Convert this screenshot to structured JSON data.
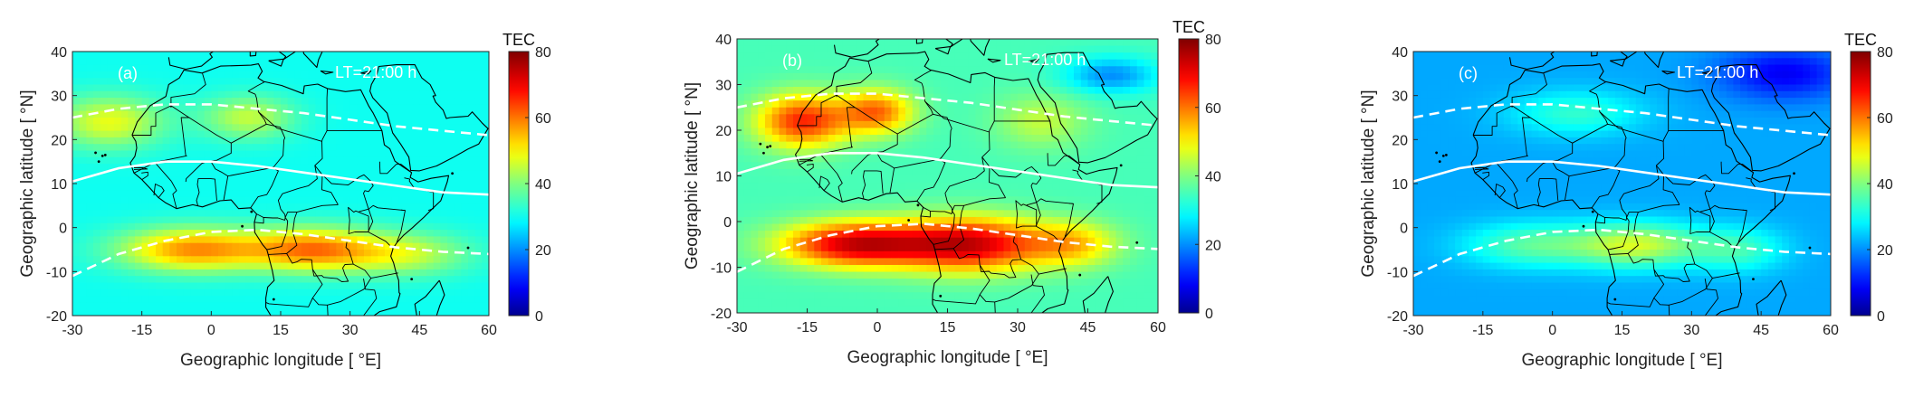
{
  "figure": {
    "panels": [
      {
        "label": "(a)",
        "annotation": "LT=21:00 h"
      },
      {
        "label": "(b)",
        "annotation": "LT=21:00 h"
      },
      {
        "label": "(c)",
        "annotation": "LT=21:00 h"
      }
    ]
  },
  "chart_data": [
    {
      "type": "heatmap",
      "panel_label": "(a)",
      "annotation": "LT=21:00 h",
      "xlabel": "Geographic longitude [ °E]",
      "ylabel": "Geographic latitude [ °N]",
      "xlim": [
        -30,
        60
      ],
      "ylim": [
        -20,
        40
      ],
      "xticks": [
        -30,
        -15,
        0,
        15,
        30,
        45,
        60
      ],
      "yticks": [
        -20,
        -10,
        0,
        10,
        20,
        30,
        40
      ],
      "colorbar": {
        "title": "TEC",
        "range": [
          0,
          80
        ],
        "ticks": [
          0,
          20,
          40,
          60,
          80
        ]
      },
      "background_tec": 30,
      "hotspots": [
        {
          "lon": -4,
          "lat": -5,
          "tec": 58,
          "rlon": 16,
          "rlat": 5
        },
        {
          "lon": 22,
          "lat": -5,
          "tec": 58,
          "rlon": 14,
          "rlat": 5
        },
        {
          "lon": -22,
          "lat": 24,
          "tec": 48,
          "rlon": 12,
          "rlat": 6
        },
        {
          "lon": 8,
          "lat": 25,
          "tec": 45,
          "rlon": 10,
          "rlat": 5
        },
        {
          "lon": 42,
          "lat": -6,
          "tec": 45,
          "rlon": 14,
          "rlat": 5
        }
      ],
      "magnetic_equator": {
        "lon": [
          -30,
          -20,
          -10,
          0,
          10,
          20,
          30,
          40,
          50,
          60
        ],
        "lat": [
          10.5,
          13.5,
          15,
          15,
          14,
          12.5,
          11,
          9.5,
          8,
          7.5
        ]
      },
      "crest_north": {
        "lon": [
          -30,
          -20,
          -10,
          0,
          10,
          20,
          30,
          40,
          50,
          60
        ],
        "lat": [
          25,
          27,
          28,
          28,
          27,
          26,
          24.5,
          23,
          22,
          21
        ]
      },
      "crest_south": {
        "lon": [
          -30,
          -20,
          -10,
          0,
          10,
          20,
          30,
          40,
          50,
          60
        ],
        "lat": [
          -11,
          -6,
          -3,
          -1,
          -0.5,
          -1.5,
          -3,
          -4.5,
          -5.5,
          -6
        ]
      }
    },
    {
      "type": "heatmap",
      "panel_label": "(b)",
      "annotation": "LT=21:00 h",
      "xlabel": "Geographic longitude [ °E]",
      "ylabel": "Geographic latitude [ °N]",
      "xlim": [
        -30,
        60
      ],
      "ylim": [
        -20,
        40
      ],
      "xticks": [
        -30,
        -15,
        0,
        15,
        30,
        45,
        60
      ],
      "yticks": [
        -20,
        -10,
        0,
        10,
        20,
        30,
        40
      ],
      "colorbar": {
        "title": "TEC",
        "range": [
          0,
          80
        ],
        "ticks": [
          0,
          20,
          40,
          60,
          80
        ]
      },
      "background_tec": 35,
      "hotspots": [
        {
          "lon": -5,
          "lat": -5,
          "tec": 72,
          "rlon": 16,
          "rlat": 5
        },
        {
          "lon": 20,
          "lat": -5,
          "tec": 72,
          "rlon": 16,
          "rlat": 6
        },
        {
          "lon": -16,
          "lat": 22,
          "tec": 66,
          "rlon": 10,
          "rlat": 6
        },
        {
          "lon": 0,
          "lat": 24,
          "tec": 60,
          "rlon": 8,
          "rlat": 5
        },
        {
          "lon": 42,
          "lat": -5,
          "tec": 52,
          "rlon": 10,
          "rlat": 5
        },
        {
          "lon": 35,
          "lat": 22,
          "tec": 45,
          "rlon": 10,
          "rlat": 6
        },
        {
          "lon": 50,
          "lat": 32,
          "tec": 20,
          "rlon": 10,
          "rlat": 4
        }
      ],
      "magnetic_equator": {
        "lon": [
          -30,
          -20,
          -10,
          0,
          10,
          20,
          30,
          40,
          50,
          60
        ],
        "lat": [
          10.5,
          13.5,
          15,
          15,
          14,
          12.5,
          11,
          9.5,
          8,
          7.5
        ]
      },
      "crest_north": {
        "lon": [
          -30,
          -20,
          -10,
          0,
          10,
          20,
          30,
          40,
          50,
          60
        ],
        "lat": [
          25,
          27,
          28,
          28,
          27,
          26,
          24.5,
          23,
          22,
          21
        ]
      },
      "crest_south": {
        "lon": [
          -30,
          -20,
          -10,
          0,
          10,
          20,
          30,
          40,
          50,
          60
        ],
        "lat": [
          -11,
          -6,
          -3,
          -1,
          -0.5,
          -1.5,
          -3,
          -4.5,
          -5.5,
          -6
        ]
      }
    },
    {
      "type": "heatmap",
      "panel_label": "(c)",
      "annotation": "LT=21:00 h",
      "xlabel": "Geographic longitude [ °E]",
      "ylabel": "Geographic latitude [ °N]",
      "xlim": [
        -30,
        60
      ],
      "ylim": [
        -20,
        40
      ],
      "xticks": [
        -30,
        -15,
        0,
        15,
        30,
        45,
        60
      ],
      "yticks": [
        -20,
        -10,
        0,
        10,
        20,
        30,
        40
      ],
      "colorbar": {
        "title": "TEC",
        "range": [
          0,
          80
        ],
        "ticks": [
          0,
          20,
          40,
          60,
          80
        ]
      },
      "background_tec": 22,
      "hotspots": [
        {
          "lon": 18,
          "lat": -4,
          "tec": 46,
          "rlon": 14,
          "rlat": 5
        },
        {
          "lon": -5,
          "lat": -4,
          "tec": 36,
          "rlon": 14,
          "rlat": 5
        },
        {
          "lon": 5,
          "lat": 26,
          "tec": 33,
          "rlon": 14,
          "rlat": 5
        },
        {
          "lon": 40,
          "lat": -5,
          "tec": 34,
          "rlon": 10,
          "rlat": 5
        },
        {
          "lon": 50,
          "lat": 35,
          "tec": 8,
          "rlon": 14,
          "rlat": 6
        }
      ],
      "magnetic_equator": {
        "lon": [
          -30,
          -20,
          -10,
          0,
          10,
          20,
          30,
          40,
          50,
          60
        ],
        "lat": [
          10.5,
          13.5,
          15,
          15,
          14,
          12.5,
          11,
          9.5,
          8,
          7.5
        ]
      },
      "crest_north": {
        "lon": [
          -30,
          -20,
          -10,
          0,
          10,
          20,
          30,
          40,
          50,
          60
        ],
        "lat": [
          25,
          27,
          28,
          28,
          27,
          26,
          24.5,
          23,
          22,
          21
        ]
      },
      "crest_south": {
        "lon": [
          -30,
          -20,
          -10,
          0,
          10,
          20,
          30,
          40,
          50,
          60
        ],
        "lat": [
          -11,
          -6,
          -3,
          -1,
          -0.5,
          -1.5,
          -3,
          -4.5,
          -5.5,
          -6
        ]
      }
    }
  ]
}
